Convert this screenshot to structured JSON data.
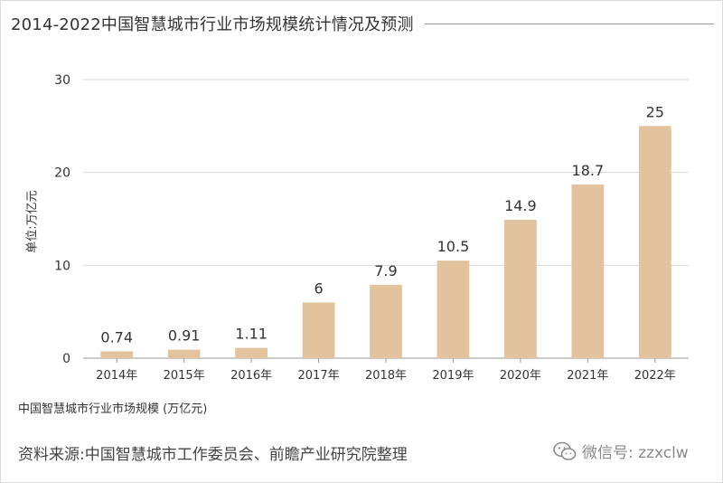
{
  "chart_data": {
    "type": "bar",
    "title": "2014-2022中国智慧城市行业市场规模统计情况及预测",
    "categories": [
      "2014年",
      "2015年",
      "2016年",
      "2017年",
      "2018年",
      "2019年",
      "2020年",
      "2021年",
      "2022年"
    ],
    "values": [
      0.74,
      0.91,
      1.11,
      6,
      7.9,
      10.5,
      14.9,
      18.7,
      25
    ],
    "value_labels": [
      "0.74",
      "0.91",
      "1.11",
      "6",
      "7.9",
      "10.5",
      "14.9",
      "18.7",
      "25"
    ],
    "ylabel": "单位:万亿元",
    "xlabel": "",
    "ylim": [
      0,
      30
    ],
    "yticks": [
      0,
      10,
      20,
      30
    ],
    "grid": true,
    "series_name": "中国智慧城市行业市场规模 (万亿元)",
    "bar_color": "#e2c39d",
    "grid_color": "#d9d9d9",
    "axis_color": "#9a9a9a"
  },
  "footer": {
    "source": "资料来源:中国智慧城市工作委员会、前瞻产业研究院整理",
    "watermark": "微信号: zzxclw",
    "watermark_icon": "wechat-icon"
  }
}
